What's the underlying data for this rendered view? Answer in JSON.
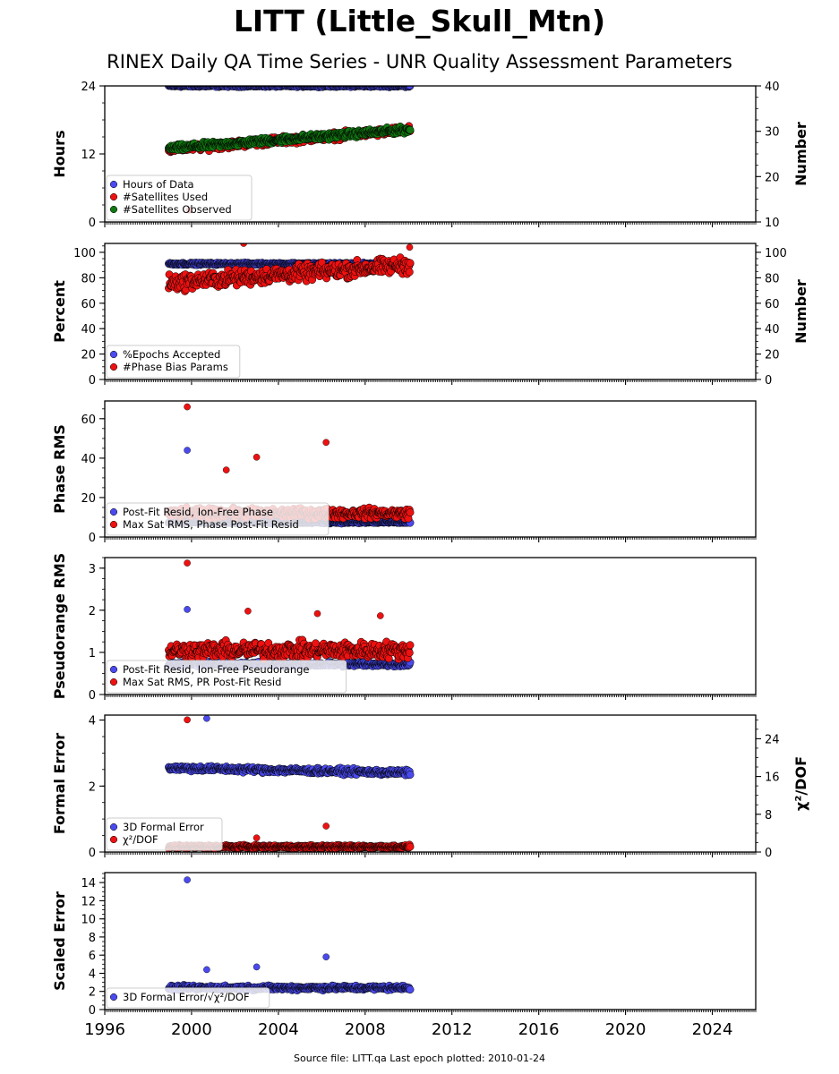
{
  "page": {
    "title": "LITT (Little_Skull_Mtn)",
    "subtitle": "RINEX Daily QA Time Series - UNR Quality Assessment Parameters",
    "footer": "Source file: LITT.qa Last epoch plotted: 2010-01-24"
  },
  "colors": {
    "blue": "#4a4aee",
    "red": "#ee1111",
    "green": "#117711",
    "edge": "#000000"
  },
  "chart_data": [
    {
      "type": "scatter",
      "ylabel": "Hours",
      "y2label": "Number",
      "ylim": [
        0,
        24
      ],
      "yticks": [
        "0",
        "12",
        "24"
      ],
      "y2lim": [
        10,
        40
      ],
      "y2ticks": [
        "10",
        "20",
        "30",
        "40"
      ],
      "legend": "bottom-left",
      "xlim": [
        1996,
        2026
      ],
      "series": [
        {
          "name": "Hours of Data",
          "color": "blue",
          "axis": "left",
          "x_range": [
            1998.95,
            2010.07
          ],
          "base": 24,
          "spread": 0.25,
          "outliers": [
            [
              2010.05,
              24
            ]
          ]
        },
        {
          "name": "#Satellites Used",
          "color": "red",
          "axis": "right",
          "x_range": [
            1998.95,
            2010.07
          ],
          "base": 26,
          "trend": 4.3,
          "spread": 1.2,
          "outliers": [
            [
              1999.9,
              12.6
            ]
          ]
        },
        {
          "name": "#Satellites Observed",
          "color": "green",
          "axis": "right",
          "x_range": [
            1998.95,
            2010.07
          ],
          "base": 26.2,
          "trend": 4.2,
          "spread": 1.0,
          "outliers": []
        }
      ]
    },
    {
      "type": "scatter",
      "ylabel": "Percent",
      "y2label": "Number",
      "ylim": [
        0,
        107
      ],
      "yticks": [
        "0",
        "20",
        "40",
        "60",
        "80",
        "100"
      ],
      "y2lim": [
        0,
        107
      ],
      "y2ticks": [
        "0",
        "20",
        "40",
        "60",
        "80",
        "100"
      ],
      "legend": "bottom-left",
      "xlim": [
        1996,
        2026
      ],
      "series": [
        {
          "name": "%Epochs Accepted",
          "color": "blue",
          "axis": "left",
          "x_range": [
            1998.95,
            2010.07
          ],
          "base": 91,
          "spread": 1.2,
          "outliers": []
        },
        {
          "name": "#Phase Bias Params",
          "color": "red",
          "axis": "right",
          "x_range": [
            1998.95,
            2010.07
          ],
          "base": 76,
          "trend": 14,
          "spread": 9,
          "outliers": [
            [
              2002.4,
              107
            ],
            [
              2010.05,
              104
            ]
          ]
        }
      ]
    },
    {
      "type": "scatter",
      "ylabel": "Phase RMS",
      "ylim": [
        0,
        69
      ],
      "yticks": [
        "0",
        "20",
        "40",
        "60"
      ],
      "legend": "bottom-left",
      "xlim": [
        1996,
        2026
      ],
      "series": [
        {
          "name": "Post-Fit Resid, Ion-Free Phase",
          "color": "blue",
          "axis": "left",
          "x_range": [
            1998.95,
            2010.07
          ],
          "base": 7.5,
          "spread": 0.8,
          "outliers": [
            [
              1999.8,
              44
            ]
          ]
        },
        {
          "name": "Max Sat RMS, Phase Post-Fit Resid",
          "color": "red",
          "axis": "left",
          "x_range": [
            1998.95,
            2010.07
          ],
          "base": 12,
          "spread": 3.5,
          "outliers": [
            [
              1999.8,
              66
            ],
            [
              2006.2,
              48
            ],
            [
              2003.0,
              40.5
            ],
            [
              2001.6,
              34
            ]
          ]
        }
      ]
    },
    {
      "type": "scatter",
      "ylabel": "Pseudorange RMS",
      "ylim": [
        0,
        3.25
      ],
      "yticks": [
        "0",
        "1",
        "2",
        "3"
      ],
      "legend": "bottom-left",
      "xlim": [
        1996,
        2026
      ],
      "series": [
        {
          "name": "Post-Fit Resid, Ion-Free Pseudorange",
          "color": "blue",
          "axis": "left",
          "x_range": [
            1998.95,
            2010.07
          ],
          "base": 0.72,
          "spread": 0.08,
          "outliers": [
            [
              1999.8,
              2.02
            ]
          ]
        },
        {
          "name": "Max Sat RMS, PR Post-Fit Resid",
          "color": "red",
          "axis": "left",
          "x_range": [
            1998.95,
            2010.07
          ],
          "base": 1.05,
          "spread": 0.28,
          "outliers": [
            [
              1999.8,
              3.12
            ],
            [
              2002.6,
              1.98
            ],
            [
              2005.8,
              1.92
            ],
            [
              2008.7,
              1.87
            ]
          ]
        }
      ]
    },
    {
      "type": "scatter",
      "ylabel": "Formal Error",
      "y2label": "χ²/DOF",
      "ylim": [
        0,
        4.15
      ],
      "yticks": [
        "0",
        "2",
        "4"
      ],
      "y2lim": [
        0,
        29
      ],
      "y2ticks": [
        "0",
        "8",
        "16",
        "24"
      ],
      "legend": "bottom-left",
      "xlim": [
        1996,
        2026
      ],
      "series": [
        {
          "name": "3D Formal Error",
          "color": "blue",
          "axis": "left",
          "x_range": [
            1998.95,
            2010.07
          ],
          "base": 2.55,
          "trend": -0.15,
          "spread": 0.12,
          "outliers": [
            [
              2000.7,
              4.05
            ]
          ]
        },
        {
          "name": "χ²/DOF",
          "color": "red",
          "axis": "right",
          "x_range": [
            1998.95,
            2010.07
          ],
          "base": 1.1,
          "spread": 0.5,
          "outliers": [
            [
              1999.8,
              28
            ],
            [
              2006.2,
              5.5
            ],
            [
              2003.0,
              3.0
            ]
          ]
        }
      ]
    },
    {
      "type": "scatter",
      "ylabel": "Scaled Error",
      "ylim": [
        0,
        15.1
      ],
      "yticks": [
        "0",
        "2",
        "4",
        "6",
        "8",
        "10",
        "12",
        "14"
      ],
      "legend": "bottom-left",
      "xlim": [
        1996,
        2026
      ],
      "xticks": [
        "1996",
        "2000",
        "2004",
        "2008",
        "2012",
        "2016",
        "2020",
        "2024"
      ],
      "series": [
        {
          "name": "3D Formal Error/√χ²/DOF",
          "color": "blue",
          "axis": "left",
          "x_range": [
            1998.95,
            2010.07
          ],
          "base": 2.4,
          "spread": 0.35,
          "outliers": [
            [
              1999.8,
              14.3
            ],
            [
              2006.2,
              5.8
            ],
            [
              2003.0,
              4.7
            ],
            [
              2000.7,
              4.4
            ]
          ]
        }
      ]
    }
  ]
}
